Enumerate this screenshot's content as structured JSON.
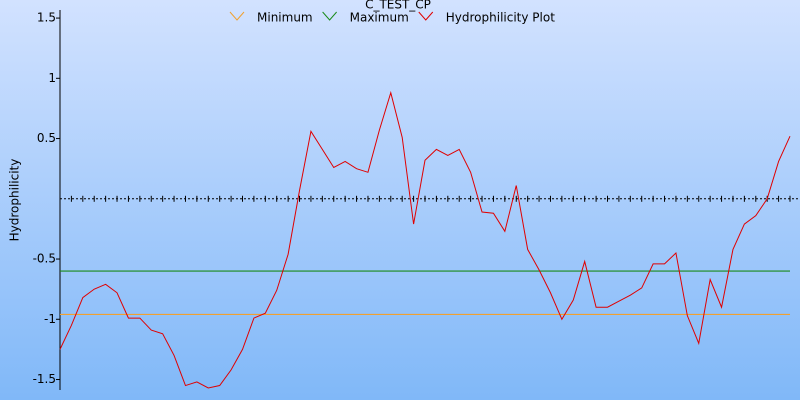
{
  "chart_data": {
    "type": "line",
    "title": "C_TEST_CP",
    "y_label": "Hydrophilicity",
    "x": [
      1,
      2,
      3,
      4,
      5,
      6,
      7,
      8,
      9,
      10,
      11,
      12,
      13,
      14,
      15,
      16,
      17,
      18,
      19,
      20,
      21,
      22,
      23,
      24,
      25,
      26,
      27,
      28,
      29,
      30,
      31,
      32,
      33,
      34,
      35,
      36,
      37,
      38,
      39,
      40,
      41,
      42,
      43,
      44,
      45,
      46,
      47,
      48,
      49,
      50,
      51,
      52,
      53,
      54,
      55,
      56,
      57,
      58,
      59,
      60,
      61,
      62,
      63,
      64,
      65
    ],
    "xlim": [
      1,
      65
    ],
    "reference_lines": [
      {
        "name": "Minimum",
        "color": "#f0a030",
        "value": -0.96
      },
      {
        "name": "Maximum",
        "color": "#1a8a1a",
        "value": -0.6
      }
    ],
    "series": [
      {
        "name": "Hydrophilicity Plot",
        "color": "#e00000",
        "values": [
          -1.25,
          -1.05,
          -0.82,
          -0.75,
          -0.71,
          -0.78,
          -0.99,
          -0.99,
          -1.09,
          -1.12,
          -1.3,
          -1.55,
          -1.52,
          -1.57,
          -1.55,
          -1.42,
          -1.25,
          -0.99,
          -0.95,
          -0.76,
          -0.46,
          0.07,
          0.56,
          0.41,
          0.26,
          0.31,
          0.25,
          0.22,
          0.57,
          0.88,
          0.51,
          -0.21,
          0.32,
          0.41,
          0.36,
          0.41,
          0.22,
          -0.11,
          -0.12,
          -0.27,
          0.11,
          -0.42,
          -0.59,
          -0.78,
          -1.0,
          -0.84,
          -0.52,
          -0.9,
          -0.9,
          -0.85,
          -0.8,
          -0.74,
          -0.54,
          -0.54,
          -0.45,
          -0.97,
          -1.2,
          -0.67,
          -0.9,
          -0.42,
          -0.21,
          -0.14,
          0.0,
          0.31,
          0.52
        ]
      }
    ],
    "ylim": [
      -1.67,
      1.65
    ],
    "yticks": [
      -1.5,
      -1,
      -0.5,
      0.5,
      1,
      1.5
    ],
    "zero_axis": true
  }
}
